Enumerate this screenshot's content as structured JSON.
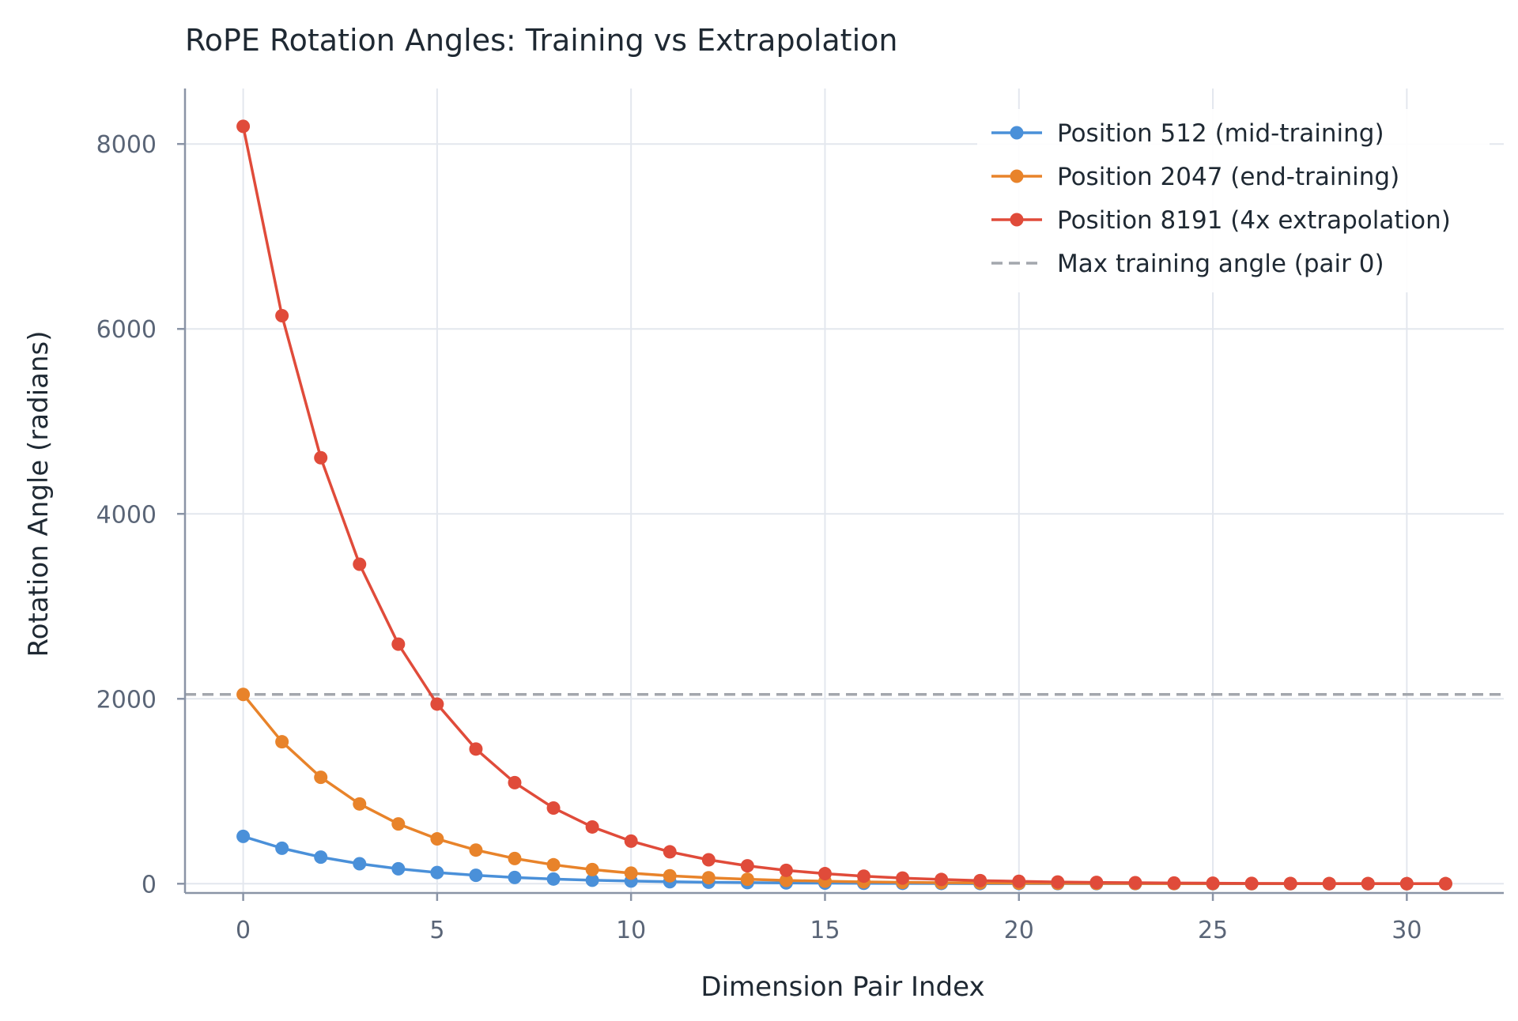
{
  "chart_data": {
    "type": "line",
    "title": "RoPE Rotation Angles: Training vs Extrapolation",
    "xlabel": "Dimension Pair Index",
    "ylabel": "Rotation Angle (radians)",
    "xlim": [
      -1.5,
      32.5
    ],
    "ylim": [
      -100,
      8600
    ],
    "xticks": [
      0,
      5,
      10,
      15,
      20,
      25,
      30
    ],
    "yticks": [
      0,
      2000,
      4000,
      6000,
      8000
    ],
    "grid": true,
    "legend_position": "top-right",
    "x": [
      0,
      1,
      2,
      3,
      4,
      5,
      6,
      7,
      8,
      9,
      10,
      11,
      12,
      13,
      14,
      15,
      16,
      17,
      18,
      19,
      20,
      21,
      22,
      23,
      24,
      25,
      26,
      27,
      28,
      29,
      30,
      31
    ],
    "series": [
      {
        "name": "Position 512 (mid-training)",
        "color": "#4a90d9",
        "values": [
          512,
          384,
          288,
          216,
          162,
          121,
          91,
          68,
          51,
          38,
          29,
          22,
          16,
          12,
          9,
          7,
          5,
          4,
          3,
          2,
          2,
          1,
          1,
          1,
          1,
          0,
          0,
          0,
          0,
          0,
          0,
          0
        ]
      },
      {
        "name": "Position 2047 (end-training)",
        "color": "#e8832a",
        "values": [
          2047,
          1535,
          1151,
          863,
          647,
          485,
          364,
          273,
          205,
          153,
          115,
          86,
          65,
          48,
          36,
          27,
          20,
          15,
          11,
          9,
          6,
          5,
          4,
          3,
          2,
          2,
          1,
          1,
          1,
          1,
          0,
          0
        ]
      },
      {
        "name": "Position 8191 (4x extrapolation)",
        "color": "#e04b3a",
        "values": [
          8191,
          6143,
          4607,
          3455,
          2591,
          1943,
          1457,
          1093,
          819,
          614,
          461,
          345,
          259,
          194,
          145,
          109,
          82,
          61,
          46,
          34,
          26,
          19,
          14,
          11,
          8,
          6,
          4,
          3,
          2,
          2,
          1,
          1
        ]
      }
    ],
    "reference_line": {
      "name": "Max training angle (pair 0)",
      "y": 2047,
      "color": "#a3a7ad",
      "style": "dashed"
    }
  }
}
